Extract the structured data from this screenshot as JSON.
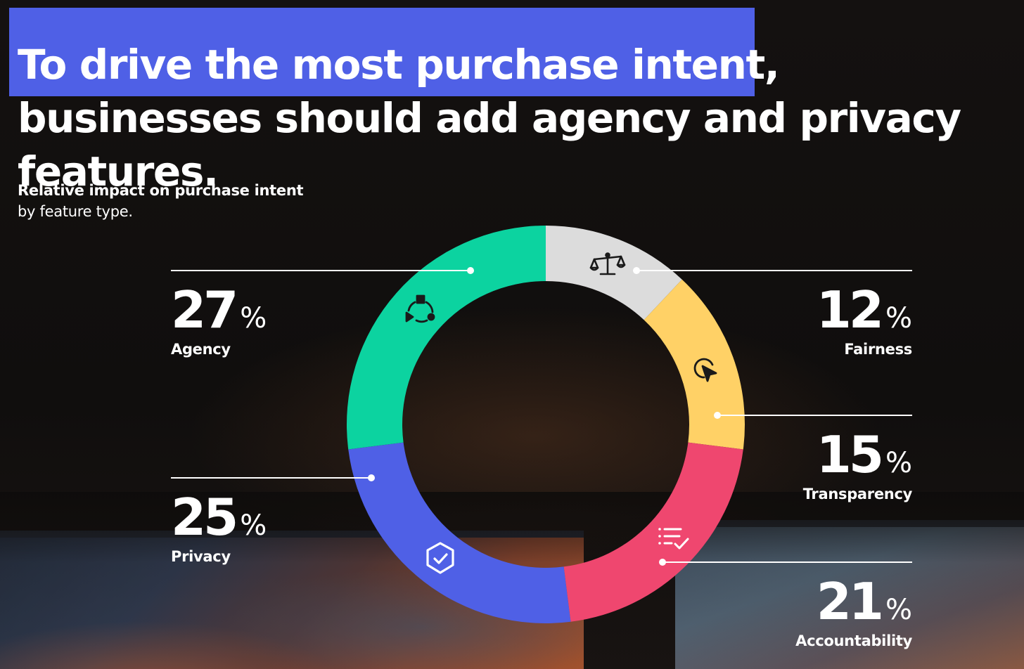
{
  "headline": {
    "highlighted": "To drive the most purchase intent,",
    "rest": "businesses should add agency and privacy features."
  },
  "subtitle": {
    "line1": "Relative impact on purchase intent",
    "line2": "by feature type."
  },
  "chart_data": {
    "type": "pie",
    "title": "Relative impact on purchase intent by feature type.",
    "unit": "%",
    "slices": [
      {
        "label": "Fairness",
        "value": 12,
        "color": "#dcdcdc",
        "icon": "scale-icon"
      },
      {
        "label": "Transparency",
        "value": 15,
        "color": "#ffd166",
        "icon": "cursor-target-icon"
      },
      {
        "label": "Accountability",
        "value": 21,
        "color": "#ef476f",
        "icon": "checklist-icon"
      },
      {
        "label": "Privacy",
        "value": 25,
        "color": "#4f60e6",
        "icon": "shield-check-icon"
      },
      {
        "label": "Agency",
        "value": 27,
        "color": "#0cd3a0",
        "icon": "network-cycle-icon"
      }
    ]
  }
}
